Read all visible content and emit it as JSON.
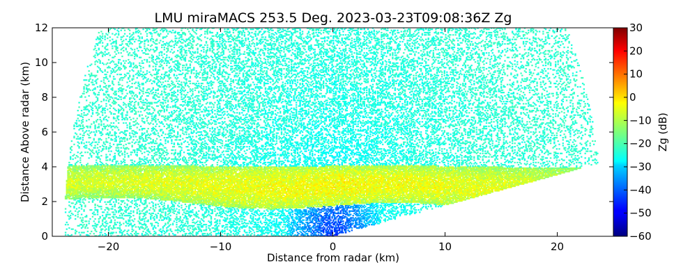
{
  "chart_data": {
    "type": "heatmap",
    "title": "LMU miraMACS 253.5 Deg. 2023-03-23T09:08:36Z  Zg",
    "xlabel": "Distance from radar (km)",
    "ylabel": "Distance Above radar  (km)",
    "xlim": [
      -25,
      25
    ],
    "ylim": [
      0,
      12
    ],
    "xticks": [
      -20,
      -10,
      0,
      10,
      20
    ],
    "yticks": [
      0,
      2,
      4,
      6,
      8,
      10,
      12
    ],
    "grid": false,
    "colorbar": {
      "label": "Zg (dB)",
      "vmin": -60,
      "vmax": 30,
      "ticks": [
        -60,
        -50,
        -40,
        -30,
        -20,
        -10,
        0,
        10,
        20,
        30
      ],
      "colormap": "jet"
    },
    "features": {
      "scan_span_km": [
        -24,
        24
      ],
      "scan_max_range_km": 24,
      "scan_edge_angles_deg": [
        0,
        10
      ],
      "noise_level_dbz": -22,
      "near_radar_clear_air_dbz": -45,
      "cloud_layer": {
        "x_range_km": [
          -24,
          24
        ],
        "base_km": 2.0,
        "top_km": 4.4,
        "peak_dbz": 2,
        "typical_dbz": -10
      }
    }
  }
}
